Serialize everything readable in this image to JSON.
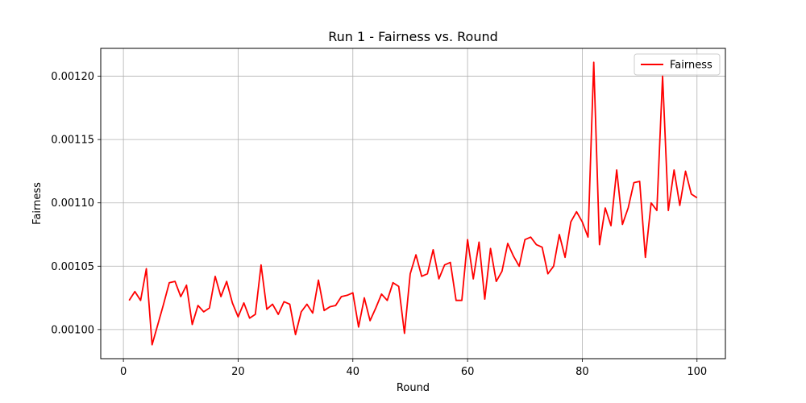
{
  "chart_data": {
    "type": "line",
    "title": "Run 1 - Fairness vs. Round",
    "xlabel": "Round",
    "ylabel": "Fairness",
    "xlim": [
      -3.95,
      104.95
    ],
    "ylim": [
      0.000977,
      0.001222
    ],
    "xticks": [
      0,
      20,
      40,
      60,
      80,
      100
    ],
    "xtick_labels": [
      "0",
      "20",
      "40",
      "60",
      "80",
      "100"
    ],
    "yticks": [
      0.001,
      0.00105,
      0.0011,
      0.00115,
      0.0012
    ],
    "ytick_labels": [
      "0.00100",
      "0.00105",
      "0.00110",
      "0.00115",
      "0.00120"
    ],
    "grid": true,
    "legend": "top-right",
    "series": [
      {
        "name": "Fairness",
        "color": "#ff0000",
        "x": [
          1,
          2,
          3,
          4,
          5,
          6,
          7,
          8,
          9,
          10,
          11,
          12,
          13,
          14,
          15,
          16,
          17,
          18,
          19,
          20,
          21,
          22,
          23,
          24,
          25,
          26,
          27,
          28,
          29,
          30,
          31,
          32,
          33,
          34,
          35,
          36,
          37,
          38,
          39,
          40,
          41,
          42,
          43,
          44,
          45,
          46,
          47,
          48,
          49,
          50,
          51,
          52,
          53,
          54,
          55,
          56,
          57,
          58,
          59,
          60,
          61,
          62,
          63,
          64,
          65,
          66,
          67,
          68,
          69,
          70,
          71,
          72,
          73,
          74,
          75,
          76,
          77,
          78,
          79,
          80,
          81,
          82,
          83,
          84,
          85,
          86,
          87,
          88,
          89,
          90,
          91,
          92,
          93,
          94,
          95,
          96,
          97,
          98,
          99,
          100
        ],
        "y": [
          0.001023,
          0.00103,
          0.001023,
          0.001048,
          0.000988,
          0.001004,
          0.00102,
          0.001037,
          0.001038,
          0.001026,
          0.001035,
          0.001004,
          0.001019,
          0.001014,
          0.001017,
          0.001042,
          0.001026,
          0.001038,
          0.001021,
          0.00101,
          0.001021,
          0.001009,
          0.001012,
          0.001051,
          0.001016,
          0.00102,
          0.001012,
          0.001022,
          0.00102,
          0.000996,
          0.001014,
          0.00102,
          0.001013,
          0.001039,
          0.001015,
          0.001018,
          0.001019,
          0.001026,
          0.001027,
          0.001029,
          0.001002,
          0.001025,
          0.001007,
          0.001017,
          0.001028,
          0.001023,
          0.001037,
          0.001034,
          0.000997,
          0.001044,
          0.001059,
          0.001042,
          0.001044,
          0.001063,
          0.00104,
          0.001051,
          0.001053,
          0.001023,
          0.001023,
          0.001071,
          0.00104,
          0.001069,
          0.001024,
          0.001064,
          0.001038,
          0.001046,
          0.001068,
          0.001058,
          0.00105,
          0.001071,
          0.001073,
          0.001067,
          0.001065,
          0.001044,
          0.00105,
          0.001075,
          0.001057,
          0.001085,
          0.001093,
          0.001085,
          0.001073,
          0.001211,
          0.001067,
          0.001096,
          0.001082,
          0.001126,
          0.001083,
          0.001096,
          0.001116,
          0.001117,
          0.001057,
          0.0011,
          0.001094,
          0.0012,
          0.001094,
          0.001126,
          0.001098,
          0.001125,
          0.001107,
          0.001104
        ]
      }
    ]
  }
}
